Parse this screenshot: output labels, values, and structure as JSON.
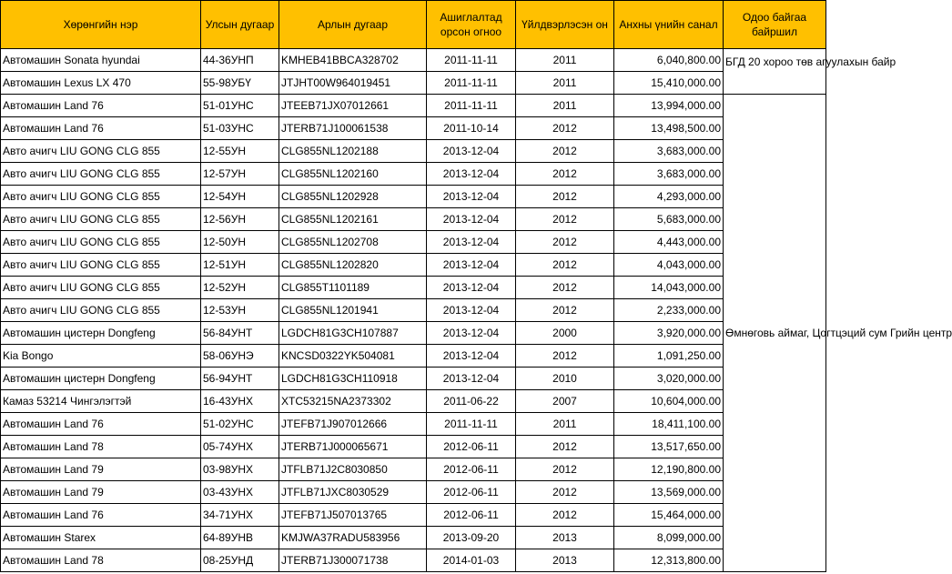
{
  "headers": [
    "Хөрөнгийн нэр",
    "Улсын дугаар",
    "Арлын дугаар",
    "Ашиглалтад орсон огноо",
    "Үйлдвэрлэсэн он",
    "Анхны үнийн санал",
    "Одоо байгаа байршил"
  ],
  "locations": [
    "БГД 20 хороо төв агуулахын байр",
    "Өмнөговь аймаг, Цогтцэций сум Грийн центр"
  ],
  "rows": [
    {
      "name": "Автомашин Sonata hyundai",
      "plate": "44-36УНП",
      "vin": "KMHEB41BBCA328702",
      "date": "2011-11-11",
      "year": "2011",
      "price": "6,040,800.00"
    },
    {
      "name": "Автомашин Lexus LX 470",
      "plate": "55-98УБҮ",
      "vin": "JTJHT00W964019451",
      "date": "2011-11-11",
      "year": "2011",
      "price": "15,410,000.00"
    },
    {
      "name": "Автомашин Land 76",
      "plate": "51-01УНС",
      "vin": "JTEEB71JX07012661",
      "date": "2011-11-11",
      "year": "2011",
      "price": "13,994,000.00"
    },
    {
      "name": "Автомашин Land 76",
      "plate": "51-03УНС",
      "vin": "JTERB71J100061538",
      "date": "2011-10-14",
      "year": "2012",
      "price": "13,498,500.00"
    },
    {
      "name": "Авто ачигч  LIU GONG CLG 855",
      "plate": "12-55УН",
      "vin": "CLG855NL1202188",
      "date": "2013-12-04",
      "year": "2012",
      "price": "3,683,000.00"
    },
    {
      "name": "Авто ачигч  LIU GONG CLG 855",
      "plate": "12-57УН",
      "vin": "CLG855NL1202160",
      "date": "2013-12-04",
      "year": "2012",
      "price": "3,683,000.00"
    },
    {
      "name": "Авто ачигч  LIU GONG CLG 855",
      "plate": "12-54УН",
      "vin": "CLG855NL1202928",
      "date": "2013-12-04",
      "year": "2012",
      "price": "4,293,000.00"
    },
    {
      "name": "Авто ачигч  LIU GONG CLG 855",
      "plate": "12-56УН",
      "vin": "CLG855NL1202161",
      "date": "2013-12-04",
      "year": "2012",
      "price": "5,683,000.00"
    },
    {
      "name": "Авто ачигч  LIU GONG CLG 855",
      "plate": "12-50УН",
      "vin": "CLG855NL1202708",
      "date": "2013-12-04",
      "year": "2012",
      "price": "4,443,000.00"
    },
    {
      "name": "Авто ачигч  LIU GONG CLG 855",
      "plate": "12-51УН",
      "vin": "CLG855NL1202820",
      "date": "2013-12-04",
      "year": "2012",
      "price": "4,043,000.00"
    },
    {
      "name": "Авто ачигч  LIU GONG CLG 855",
      "plate": "12-52УН",
      "vin": "CLG855T1101189",
      "date": "2013-12-04",
      "year": "2012",
      "price": "14,043,000.00"
    },
    {
      "name": "Авто ачигч  LIU GONG CLG 855",
      "plate": "12-53УН",
      "vin": "CLG855NL1201941",
      "date": "2013-12-04",
      "year": "2012",
      "price": "2,233,000.00"
    },
    {
      "name": "Автомашин цистерн Dongfeng",
      "plate": "56-84УНТ",
      "vin": "LGDCH81G3CH107887",
      "date": "2013-12-04",
      "year": "2000",
      "price": "3,920,000.00"
    },
    {
      "name": "Kia Bongo",
      "plate": "58-06УНЭ",
      "vin": "KNCSD0322YK504081",
      "date": "2013-12-04",
      "year": "2012",
      "price": "1,091,250.00"
    },
    {
      "name": "Автомашин цистерн Dongfeng",
      "plate": "56-94УНТ",
      "vin": "LGDCH81G3CH110918",
      "date": "2013-12-04",
      "year": "2010",
      "price": "3,020,000.00"
    },
    {
      "name": "Камаз 53214 Чингэлэгтэй",
      "plate": "16-43УНХ",
      "vin": "XTC53215NA2373302",
      "date": "2011-06-22",
      "year": "2007",
      "price": "10,604,000.00"
    },
    {
      "name": "Автомашин Land 76",
      "plate": "51-02УНС",
      "vin": "JTEFB71J907012666",
      "date": "2011-11-11",
      "year": "2011",
      "price": "18,411,100.00"
    },
    {
      "name": "Автомашин Land 78",
      "plate": "05-74УНХ",
      "vin": "JTERB71J000065671",
      "date": "2012-06-11",
      "year": "2012",
      "price": "13,517,650.00"
    },
    {
      "name": "Автомашин Land 79",
      "plate": "03-98УНХ",
      "vin": "JTFLB71J2C8030850",
      "date": "2012-06-11",
      "year": "2012",
      "price": "12,190,800.00"
    },
    {
      "name": "Автомашин Land 79",
      "plate": "03-43УНХ",
      "vin": "JTFLB71JXC8030529",
      "date": "2012-06-11",
      "year": "2012",
      "price": "13,569,000.00"
    },
    {
      "name": "Автомашин Land 76",
      "plate": "34-71УНХ",
      "vin": "JTEFB71J507013765",
      "date": "2012-06-11",
      "year": "2012",
      "price": "15,464,000.00"
    },
    {
      "name": "Автомашин Starex",
      "plate": "64-89УНВ",
      "vin": "KMJWA37RADU583956",
      "date": "2013-09-20",
      "year": "2013",
      "price": "8,099,000.00"
    },
    {
      "name": "Автомашин Land 78",
      "plate": "08-25УНД",
      "vin": "JTERB71J300071738",
      "date": "2014-01-03",
      "year": "2013",
      "price": "12,313,800.00"
    }
  ]
}
